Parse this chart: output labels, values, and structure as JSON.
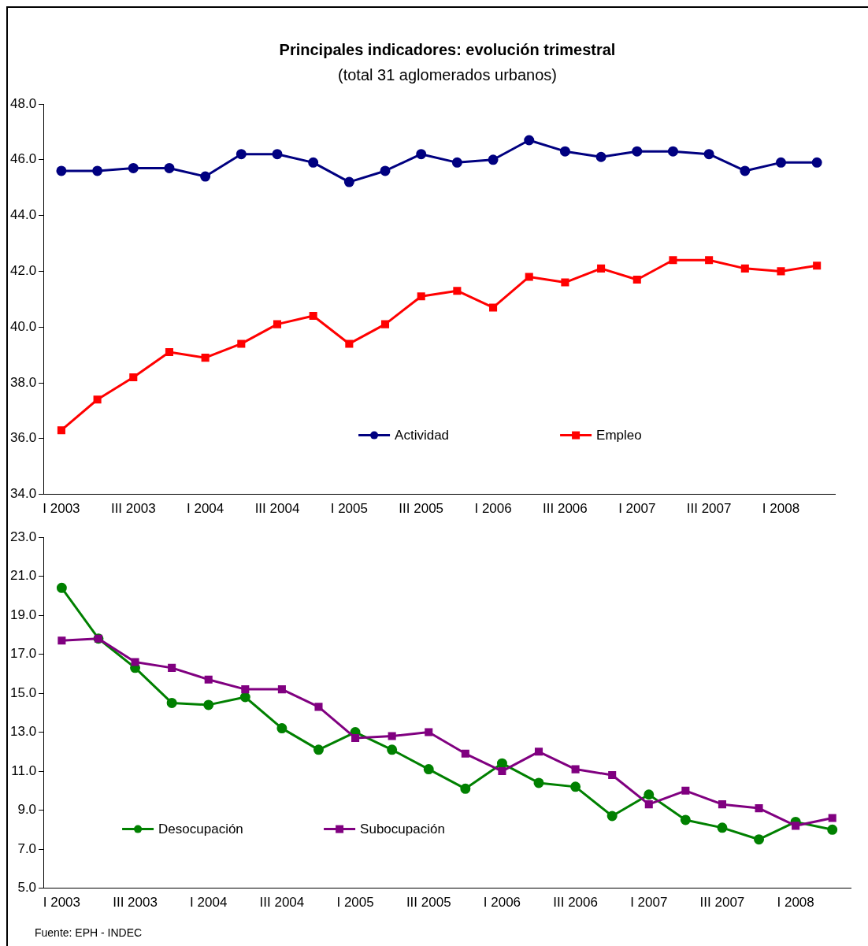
{
  "chart_data": [
    {
      "type": "line",
      "title": "Principales indicadores: evolución trimestral",
      "subtitle": "(total 31 aglomerados urbanos)",
      "categories": [
        "I 2003",
        null,
        "III 2003",
        null,
        "I 2004",
        null,
        "III 2004",
        null,
        "I 2005",
        null,
        "III 2005",
        null,
        "I 2006",
        null,
        "III 2006",
        null,
        "I 2007",
        null,
        "III 2007",
        null,
        "I 2008",
        null
      ],
      "series": [
        {
          "name": "Actividad",
          "color": "#000080",
          "marker": "circle",
          "values": [
            45.6,
            45.6,
            45.7,
            45.7,
            45.4,
            46.2,
            46.2,
            45.9,
            45.2,
            45.6,
            46.2,
            45.9,
            46.0,
            46.7,
            46.3,
            46.1,
            46.3,
            46.3,
            46.2,
            45.6,
            45.9,
            45.9
          ]
        },
        {
          "name": "Empleo",
          "color": "#ff0000",
          "marker": "square",
          "values": [
            36.3,
            37.4,
            38.2,
            39.1,
            38.9,
            39.4,
            40.1,
            40.4,
            39.4,
            40.1,
            41.1,
            41.3,
            40.7,
            41.8,
            41.6,
            42.1,
            41.7,
            42.4,
            42.4,
            42.1,
            42.0,
            42.2
          ]
        }
      ],
      "ylim": [
        34,
        48
      ],
      "yticks": [
        {
          "value": 34,
          "label": "34.0"
        },
        {
          "value": 36,
          "label": "36.0"
        },
        {
          "value": 38,
          "label": "38.0"
        },
        {
          "value": 40,
          "label": "40.0"
        },
        {
          "value": 42,
          "label": "42.0"
        },
        {
          "value": 44,
          "label": "44.0"
        },
        {
          "value": 46,
          "label": "46.0"
        },
        {
          "value": 48,
          "label": "48.0"
        }
      ],
      "grid": false,
      "legend": "bottom"
    },
    {
      "type": "line",
      "annotations": [
        "Fuente: EPH - INDEC"
      ],
      "categories": [
        "I 2003",
        null,
        "III 2003",
        null,
        "I 2004",
        null,
        "III 2004",
        null,
        "I 2005",
        null,
        "III 2005",
        null,
        "I 2006",
        null,
        "III 2006",
        null,
        "I 2007",
        null,
        "III 2007",
        null,
        "I 2008",
        null
      ],
      "series": [
        {
          "name": "Desocupación",
          "color": "#008000",
          "marker": "circle",
          "values": [
            20.4,
            17.8,
            16.3,
            14.5,
            14.4,
            14.8,
            13.2,
            12.1,
            13.0,
            12.1,
            11.1,
            10.1,
            11.4,
            10.4,
            10.2,
            8.7,
            9.8,
            8.5,
            8.1,
            7.5,
            8.4,
            8.0
          ]
        },
        {
          "name": "Subocupación",
          "color": "#800080",
          "marker": "square",
          "values": [
            17.7,
            17.8,
            16.6,
            16.3,
            15.7,
            15.2,
            15.2,
            14.3,
            12.7,
            12.8,
            13.0,
            11.9,
            11.0,
            12.0,
            11.1,
            10.8,
            9.3,
            10.0,
            9.3,
            9.1,
            8.2,
            8.6
          ]
        }
      ],
      "ylim": [
        5,
        23
      ],
      "yticks": [
        {
          "value": 5,
          "label": "5.0"
        },
        {
          "value": 7,
          "label": "7.0"
        },
        {
          "value": 9,
          "label": "9.0"
        },
        {
          "value": 11,
          "label": "11.0"
        },
        {
          "value": 13,
          "label": "13.0"
        },
        {
          "value": 15,
          "label": "15.0"
        },
        {
          "value": 17,
          "label": "17.0"
        },
        {
          "value": 19,
          "label": "19.0"
        },
        {
          "value": 21,
          "label": "21.0"
        },
        {
          "value": 23,
          "label": "23.0"
        }
      ],
      "grid": false,
      "legend": "bottom"
    }
  ]
}
